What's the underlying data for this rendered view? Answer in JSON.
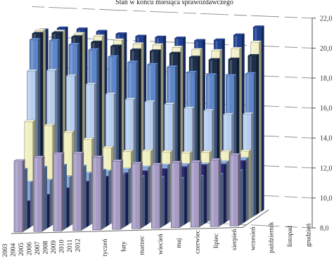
{
  "chart_data": {
    "type": "bar",
    "subtype": "3d-column-stacked-depth",
    "title": "Stan w końcu miesiąca sprawozdawczego",
    "xlabel": "",
    "ylabel": "",
    "ylim": [
      8.0,
      22.0
    ],
    "yticks": [
      "8,0",
      "10,0",
      "12,0",
      "14,0",
      "16,0",
      "18,0",
      "20,0",
      "22,0"
    ],
    "grid": true,
    "legend": "none",
    "categories": [
      "styczeń",
      "luty",
      "marzec",
      "kwiecień",
      "maj",
      "czerwiec",
      "lipiec",
      "sierpień",
      "wrzesień",
      "październik",
      "listopad",
      "grudzień"
    ],
    "category_labels": [
      "tyczeń",
      "luty",
      "marzec",
      "wiecień",
      "maj",
      "czerwiec",
      "lipiec",
      "sierpień",
      "wrzesień",
      "październik",
      "listopad",
      "grudzień"
    ],
    "series": [
      {
        "name": "2003",
        "color": "#1f3f8f",
        "values": [
          20.6,
          20.7,
          20.6,
          20.4,
          20.2,
          20.0,
          19.9,
          19.8,
          19.6,
          19.6,
          19.9,
          20.4
        ]
      },
      {
        "name": "2004",
        "color": "#f2f0c8",
        "values": [
          20.7,
          20.6,
          20.4,
          20.2,
          19.9,
          19.6,
          19.5,
          19.3,
          19.1,
          19.0,
          19.1,
          19.5
        ]
      },
      {
        "name": "2005",
        "color": "#1d2f4a",
        "values": [
          20.6,
          20.6,
          20.3,
          19.9,
          19.6,
          19.3,
          19.2,
          19.0,
          18.7,
          18.5,
          18.5,
          18.7
        ]
      },
      {
        "name": "2006",
        "color": "#5f86c8",
        "values": [
          20.3,
          20.2,
          19.9,
          19.5,
          19.0,
          18.6,
          18.4,
          18.2,
          17.8,
          17.6,
          17.5,
          17.6
        ]
      },
      {
        "name": "2007",
        "color": "#b7cdee",
        "values": [
          18.3,
          18.3,
          17.9,
          17.3,
          16.6,
          16.2,
          16.0,
          15.8,
          15.5,
          15.3,
          15.0,
          15.0
        ]
      },
      {
        "name": "2008",
        "color": "#efefc0",
        "values": [
          15.0,
          14.7,
          14.2,
          13.7,
          13.1,
          12.8,
          12.8,
          12.7,
          12.6,
          12.6,
          12.6,
          12.6
        ]
      },
      {
        "name": "2009",
        "color": "#8aa8dc",
        "values": [
          11.0,
          11.1,
          11.3,
          11.5,
          11.6,
          11.7,
          11.8,
          11.9,
          11.9,
          11.9,
          12.0,
          12.2
        ]
      },
      {
        "name": "2010",
        "color": "#2e2c7a",
        "values": [
          9.8,
          10.2,
          10.6,
          11.0,
          11.3,
          11.5,
          11.6,
          11.7,
          11.8,
          11.9,
          11.9,
          12.1
        ]
      },
      {
        "name": "2011",
        "color": "#6f9bd8",
        "values": [
          12.1,
          12.2,
          12.3,
          12.2,
          11.9,
          11.6,
          11.4,
          11.3,
          11.2,
          11.3,
          11.4,
          11.6
        ]
      },
      {
        "name": "2012",
        "color": "#a59bc4",
        "values": [
          12.8,
          13.0,
          13.2,
          13.2,
          12.9,
          12.6,
          12.4,
          12.3,
          12.4,
          12.4,
          12.5,
          12.8
        ]
      }
    ]
  }
}
